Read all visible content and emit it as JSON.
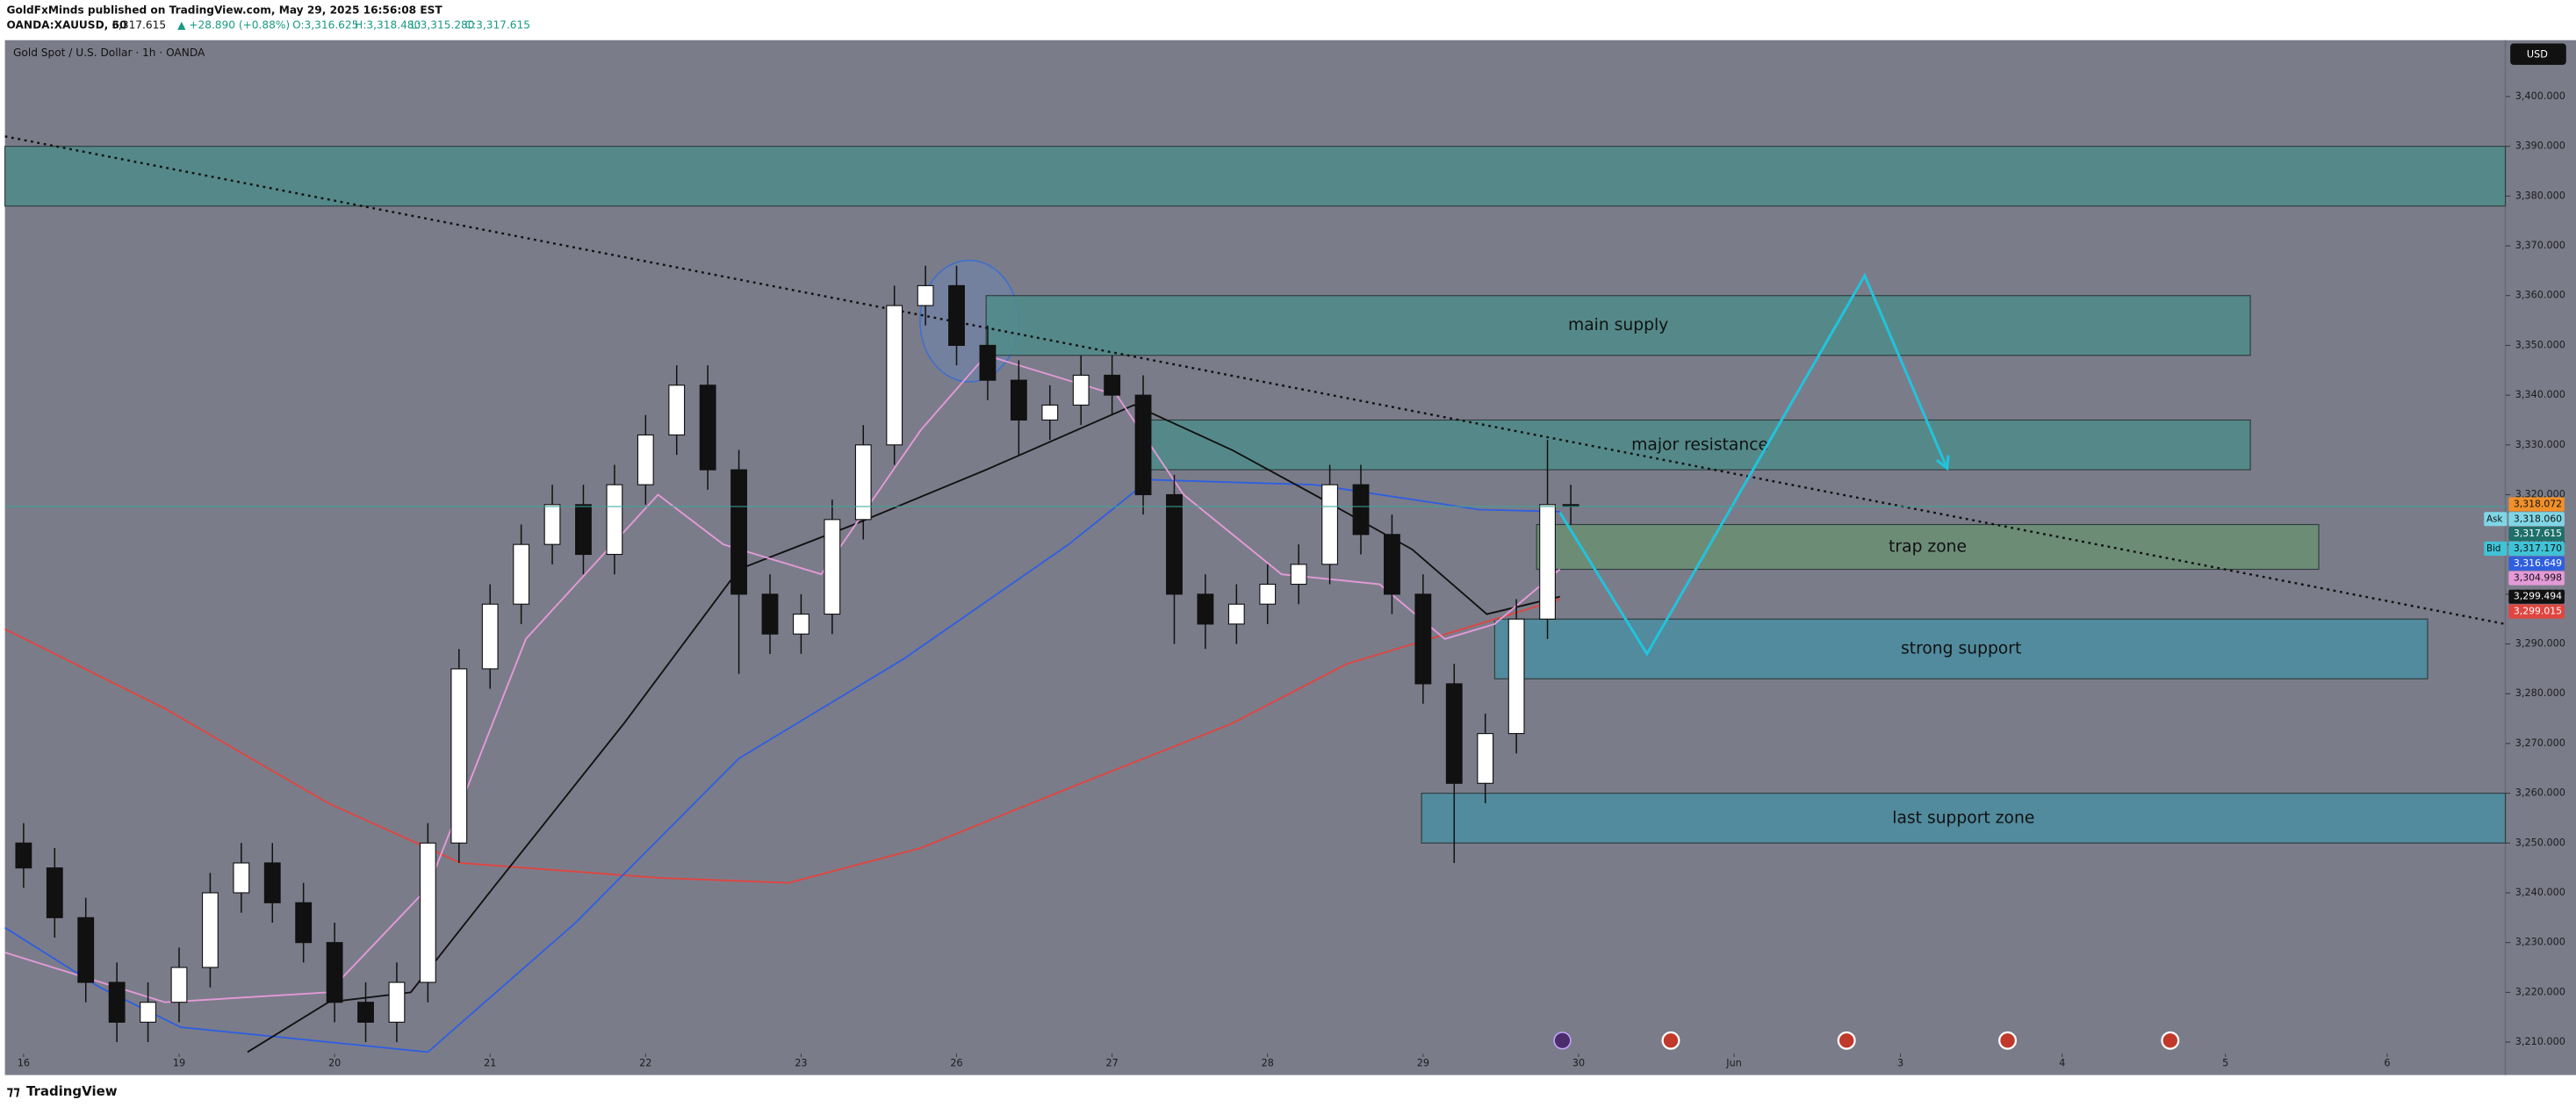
{
  "header": {
    "publisher": "GoldFxMinds published on TradingView.com, May 29, 2025 16:56:08 EST",
    "symbol": "OANDA:XAUUSD, 60",
    "price": "3,317.615",
    "change": "▲ +28.890 (+0.88%)",
    "open": "O:3,316.625",
    "high": "H:3,318.480",
    "low": "L:3,315.280",
    "close": "C:3,317.615"
  },
  "footer": {
    "brand": "TradingView"
  },
  "chart_data": {
    "type": "candlestick",
    "title": "Gold Spot / U.S. Dollar · 1h · OANDA",
    "currency": "USD",
    "xlim": [
      -0.12,
      15.96
    ],
    "ylim": [
      3208,
      3411
    ],
    "xticks": [
      {
        "value": 0,
        "label": "16"
      },
      {
        "value": 1,
        "label": "19"
      },
      {
        "value": 2,
        "label": "20"
      },
      {
        "value": 3,
        "label": "21"
      },
      {
        "value": 4,
        "label": "22"
      },
      {
        "value": 5,
        "label": "23"
      },
      {
        "value": 6,
        "label": "26"
      },
      {
        "value": 7,
        "label": "27"
      },
      {
        "value": 8,
        "label": "28"
      },
      {
        "value": 9,
        "label": "29"
      },
      {
        "value": 10,
        "label": "30"
      },
      {
        "value": 11,
        "label": "Jun"
      },
      {
        "value": 12.07,
        "label": "3"
      },
      {
        "value": 13.11,
        "label": "4"
      },
      {
        "value": 14.16,
        "label": "5"
      },
      {
        "value": 15.2,
        "label": "6"
      }
    ],
    "yticks": [
      {
        "value": 3210,
        "label": "3,210.000"
      },
      {
        "value": 3220,
        "label": "3,220.000"
      },
      {
        "value": 3230,
        "label": "3,230.000"
      },
      {
        "value": 3240,
        "label": "3,240.000"
      },
      {
        "value": 3250,
        "label": "3,250.000"
      },
      {
        "value": 3260,
        "label": "3,260.000"
      },
      {
        "value": 3270,
        "label": "3,270.000"
      },
      {
        "value": 3280,
        "label": "3,280.000"
      },
      {
        "value": 3290,
        "label": "3,290.000"
      },
      {
        "value": 3300,
        "label": "3,300.000"
      },
      {
        "value": 3310,
        "label": "3,310.000"
      },
      {
        "value": 3320,
        "label": "3,320.000"
      },
      {
        "value": 3330,
        "label": "3,330.000"
      },
      {
        "value": 3340,
        "label": "3,340.000"
      },
      {
        "value": 3350,
        "label": "3,350.000"
      },
      {
        "value": 3360,
        "label": "3,360.000"
      },
      {
        "value": 3370,
        "label": "3,370.000"
      },
      {
        "value": 3380,
        "label": "3,380.000"
      },
      {
        "value": 3390,
        "label": "3,390.000"
      },
      {
        "value": 3400,
        "label": "3,400.000"
      }
    ],
    "x": [
      0,
      0.2,
      0.4,
      0.6,
      0.8,
      1.0,
      1.2,
      1.4,
      1.6,
      1.8,
      2.0,
      2.2,
      2.4,
      2.6,
      2.8,
      3.0,
      3.2,
      3.4,
      3.6,
      3.8,
      4.0,
      4.2,
      4.4,
      4.6,
      4.8,
      5.0,
      5.2,
      5.4,
      5.6,
      5.8,
      6.0,
      6.2,
      6.4,
      6.6,
      6.8,
      7.0,
      7.2,
      7.4,
      7.6,
      7.8,
      8.0,
      8.2,
      8.4,
      8.6,
      8.8,
      9.0,
      9.2,
      9.4,
      9.6,
      9.8,
      9.95
    ],
    "open": [
      3250,
      3245,
      3235,
      3222,
      3214,
      3218,
      3225,
      3240,
      3246,
      3238,
      3230,
      3218,
      3214,
      3222,
      3250,
      3285,
      3298,
      3310,
      3318,
      3308,
      3322,
      3332,
      3342,
      3325,
      3300,
      3292,
      3296,
      3315,
      3330,
      3358,
      3362,
      3350,
      3343,
      3335,
      3338,
      3344,
      3340,
      3320,
      3300,
      3294,
      3298,
      3302,
      3306,
      3322,
      3312,
      3300,
      3282,
      3262,
      3272,
      3295,
      3318
    ],
    "high": [
      3254,
      3249,
      3239,
      3226,
      3222,
      3229,
      3244,
      3250,
      3250,
      3242,
      3234,
      3222,
      3226,
      3254,
      3289,
      3302,
      3314,
      3322,
      3322,
      3326,
      3336,
      3346,
      3346,
      3329,
      3304,
      3300,
      3319,
      3334,
      3362,
      3366,
      3366,
      3354,
      3347,
      3342,
      3348,
      3348,
      3344,
      3324,
      3304,
      3302,
      3306,
      3310,
      3326,
      3326,
      3316,
      3304,
      3286,
      3276,
      3299,
      3331,
      3322
    ],
    "low": [
      3241,
      3231,
      3218,
      3210,
      3210,
      3214,
      3221,
      3236,
      3234,
      3226,
      3214,
      3210,
      3210,
      3218,
      3246,
      3281,
      3294,
      3306,
      3304,
      3304,
      3318,
      3328,
      3321,
      3284,
      3288,
      3288,
      3292,
      3311,
      3326,
      3354,
      3346,
      3339,
      3328,
      3331,
      3334,
      3336,
      3316,
      3290,
      3289,
      3290,
      3294,
      3298,
      3302,
      3308,
      3296,
      3278,
      3246,
      3258,
      3268,
      3291,
      3314
    ],
    "close": [
      3245,
      3235,
      3222,
      3214,
      3218,
      3225,
      3240,
      3246,
      3238,
      3230,
      3218,
      3214,
      3222,
      3250,
      3285,
      3298,
      3310,
      3318,
      3308,
      3322,
      3332,
      3342,
      3325,
      3300,
      3292,
      3296,
      3315,
      3330,
      3358,
      3362,
      3350,
      3343,
      3335,
      3338,
      3344,
      3340,
      3320,
      3300,
      3294,
      3298,
      3302,
      3306,
      3322,
      3312,
      3300,
      3282,
      3262,
      3272,
      3295,
      3318,
      3317.6
    ],
    "up_color": "#ffffff",
    "down_color": "#111111",
    "series": [
      {
        "color": "#e0453f",
        "x": [
          -0.12,
          0.91,
          1.96,
          2.81,
          4.08,
          4.92,
          5.77,
          6.72,
          7.77,
          8.51,
          9.36,
          9.88
        ],
        "values": [
          3293,
          3277,
          3258,
          3246,
          3243,
          3242,
          3249,
          3261,
          3274,
          3286,
          3294,
          3299
        ]
      },
      {
        "color": "#2f5fe0",
        "x": [
          -0.12,
          0.49,
          1.01,
          2.6,
          3.55,
          4.6,
          5.66,
          6.72,
          7.24,
          8.3,
          9.36,
          9.88
        ],
        "values": [
          3233,
          3221,
          3213,
          3208,
          3234,
          3267,
          3287,
          3310,
          3323,
          3322,
          3317,
          3316.6
        ]
      },
      {
        "color": "#111111",
        "x": [
          1.44,
          1.96,
          2.49,
          3.02,
          3.86,
          4.6,
          5.34,
          6.19,
          7.14,
          7.77,
          8.3,
          8.93,
          9.41,
          9.88
        ],
        "values": [
          3208,
          3218,
          3220,
          3241,
          3274,
          3305,
          3314,
          3325,
          3338,
          3329,
          3320,
          3309,
          3296,
          3299.5
        ]
      },
      {
        "color": "#e59ad8",
        "x": [
          -0.12,
          0.91,
          1.96,
          2.6,
          3.23,
          4.08,
          4.5,
          5.13,
          5.77,
          6.19,
          7.03,
          7.46,
          8.09,
          8.72,
          9.14,
          9.46,
          9.88
        ],
        "values": [
          3228,
          3218,
          3220,
          3241,
          3291,
          3320,
          3310,
          3304,
          3333,
          3348,
          3340,
          3320,
          3304,
          3302,
          3291,
          3294,
          3305
        ]
      }
    ],
    "zones": [
      {
        "x": [
          -0.12,
          15.96
        ],
        "y": [
          3390,
          3378
        ],
        "color": "#4f8c88"
      },
      {
        "label": "main supply",
        "x": [
          6.19,
          14.32
        ],
        "y": [
          3360,
          3348
        ],
        "color": "#4f8c88"
      },
      {
        "label": "major resistance",
        "x": [
          7.24,
          14.32
        ],
        "y": [
          3335,
          3325
        ],
        "color": "#4f8c88"
      },
      {
        "label": "trap zone",
        "x": [
          9.73,
          14.76
        ],
        "y": [
          3314,
          3305
        ],
        "color": "#6a8f72"
      },
      {
        "label": "strong support",
        "x": [
          9.46,
          15.46
        ],
        "y": [
          3295,
          3283
        ],
        "color": "#4a8ea0"
      },
      {
        "label": "last support zone",
        "x": [
          8.99,
          15.96
        ],
        "y": [
          3260,
          3250
        ],
        "color": "#4a8ea0"
      }
    ],
    "trendline": {
      "x": [
        -0.12,
        15.96
      ],
      "values": [
        3392,
        3294
      ],
      "color": "#111111"
    },
    "projection": {
      "x": [
        9.88,
        10.44,
        11.84,
        12.37
      ],
      "values": [
        3316.4,
        3288,
        3364,
        3325.3
      ],
      "color": "#22c3dc"
    },
    "price_labels": [
      {
        "value": 3318.072,
        "label": "3,318.072",
        "color": "#f0902a"
      },
      {
        "tag": "Ask",
        "value": 3318.06,
        "label": "3,318.060",
        "color": "#7fd6e6"
      },
      {
        "value": 3317.615,
        "label": "3,317.615",
        "color": "#1f6f6a"
      },
      {
        "tag": "Bid",
        "value": 3317.17,
        "label": "3,317.170",
        "color": "#3fc3d6"
      },
      {
        "value": 3316.649,
        "label": "3,316.649",
        "color": "#2f5fe0"
      },
      {
        "value": 3304.998,
        "label": "3,304.998",
        "color": "#e59ad8"
      },
      {
        "value": 3299.494,
        "label": "3,299.494",
        "color": "#111111"
      },
      {
        "value": 3299.015,
        "label": "3,299.015",
        "color": "#e0453f"
      }
    ]
  }
}
